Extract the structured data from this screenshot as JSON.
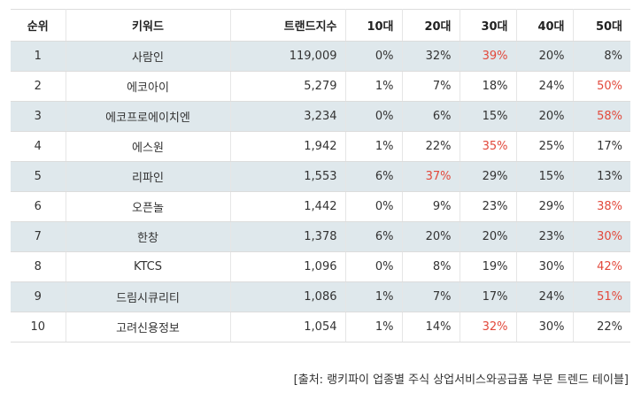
{
  "headers": [
    "순위",
    "키워드",
    "트랜드지수",
    "10대",
    "20대",
    "30대",
    "40대",
    "50대"
  ],
  "rows": [
    {
      "rank": "1",
      "keyword": "사람인",
      "index": "119,009",
      "a10": "0%",
      "a20": "32%",
      "a30": "39%",
      "a40": "20%",
      "a50": "8%",
      "highlight": "a30"
    },
    {
      "rank": "2",
      "keyword": "에코아이",
      "index": "5,279",
      "a10": "1%",
      "a20": "7%",
      "a30": "18%",
      "a40": "24%",
      "a50": "50%",
      "highlight": "a50"
    },
    {
      "rank": "3",
      "keyword": "에코프로에이치엔",
      "index": "3,234",
      "a10": "0%",
      "a20": "6%",
      "a30": "15%",
      "a40": "20%",
      "a50": "58%",
      "highlight": "a50"
    },
    {
      "rank": "4",
      "keyword": "에스원",
      "index": "1,942",
      "a10": "1%",
      "a20": "22%",
      "a30": "35%",
      "a40": "25%",
      "a50": "17%",
      "highlight": "a30"
    },
    {
      "rank": "5",
      "keyword": "리파인",
      "index": "1,553",
      "a10": "6%",
      "a20": "37%",
      "a30": "29%",
      "a40": "15%",
      "a50": "13%",
      "highlight": "a20"
    },
    {
      "rank": "6",
      "keyword": "오픈놀",
      "index": "1,442",
      "a10": "0%",
      "a20": "9%",
      "a30": "23%",
      "a40": "29%",
      "a50": "38%",
      "highlight": "a50"
    },
    {
      "rank": "7",
      "keyword": "한창",
      "index": "1,378",
      "a10": "6%",
      "a20": "20%",
      "a30": "20%",
      "a40": "23%",
      "a50": "30%",
      "highlight": "a50"
    },
    {
      "rank": "8",
      "keyword": "KTCS",
      "index": "1,096",
      "a10": "0%",
      "a20": "8%",
      "a30": "19%",
      "a40": "30%",
      "a50": "42%",
      "highlight": "a50"
    },
    {
      "rank": "9",
      "keyword": "드림시큐리티",
      "index": "1,086",
      "a10": "1%",
      "a20": "7%",
      "a30": "17%",
      "a40": "24%",
      "a50": "51%",
      "highlight": "a50"
    },
    {
      "rank": "10",
      "keyword": "고려신용정보",
      "index": "1,054",
      "a10": "1%",
      "a20": "14%",
      "a30": "32%",
      "a40": "30%",
      "a50": "22%",
      "highlight": "a30"
    }
  ],
  "source": "[출처: 랭키파이 업종별 주식 상업서비스와공급품 부문 트렌드 테이블]",
  "colors": {
    "shade": "#dfe8ec",
    "highlight": "#e2483b",
    "border": "#dcdcdc"
  }
}
